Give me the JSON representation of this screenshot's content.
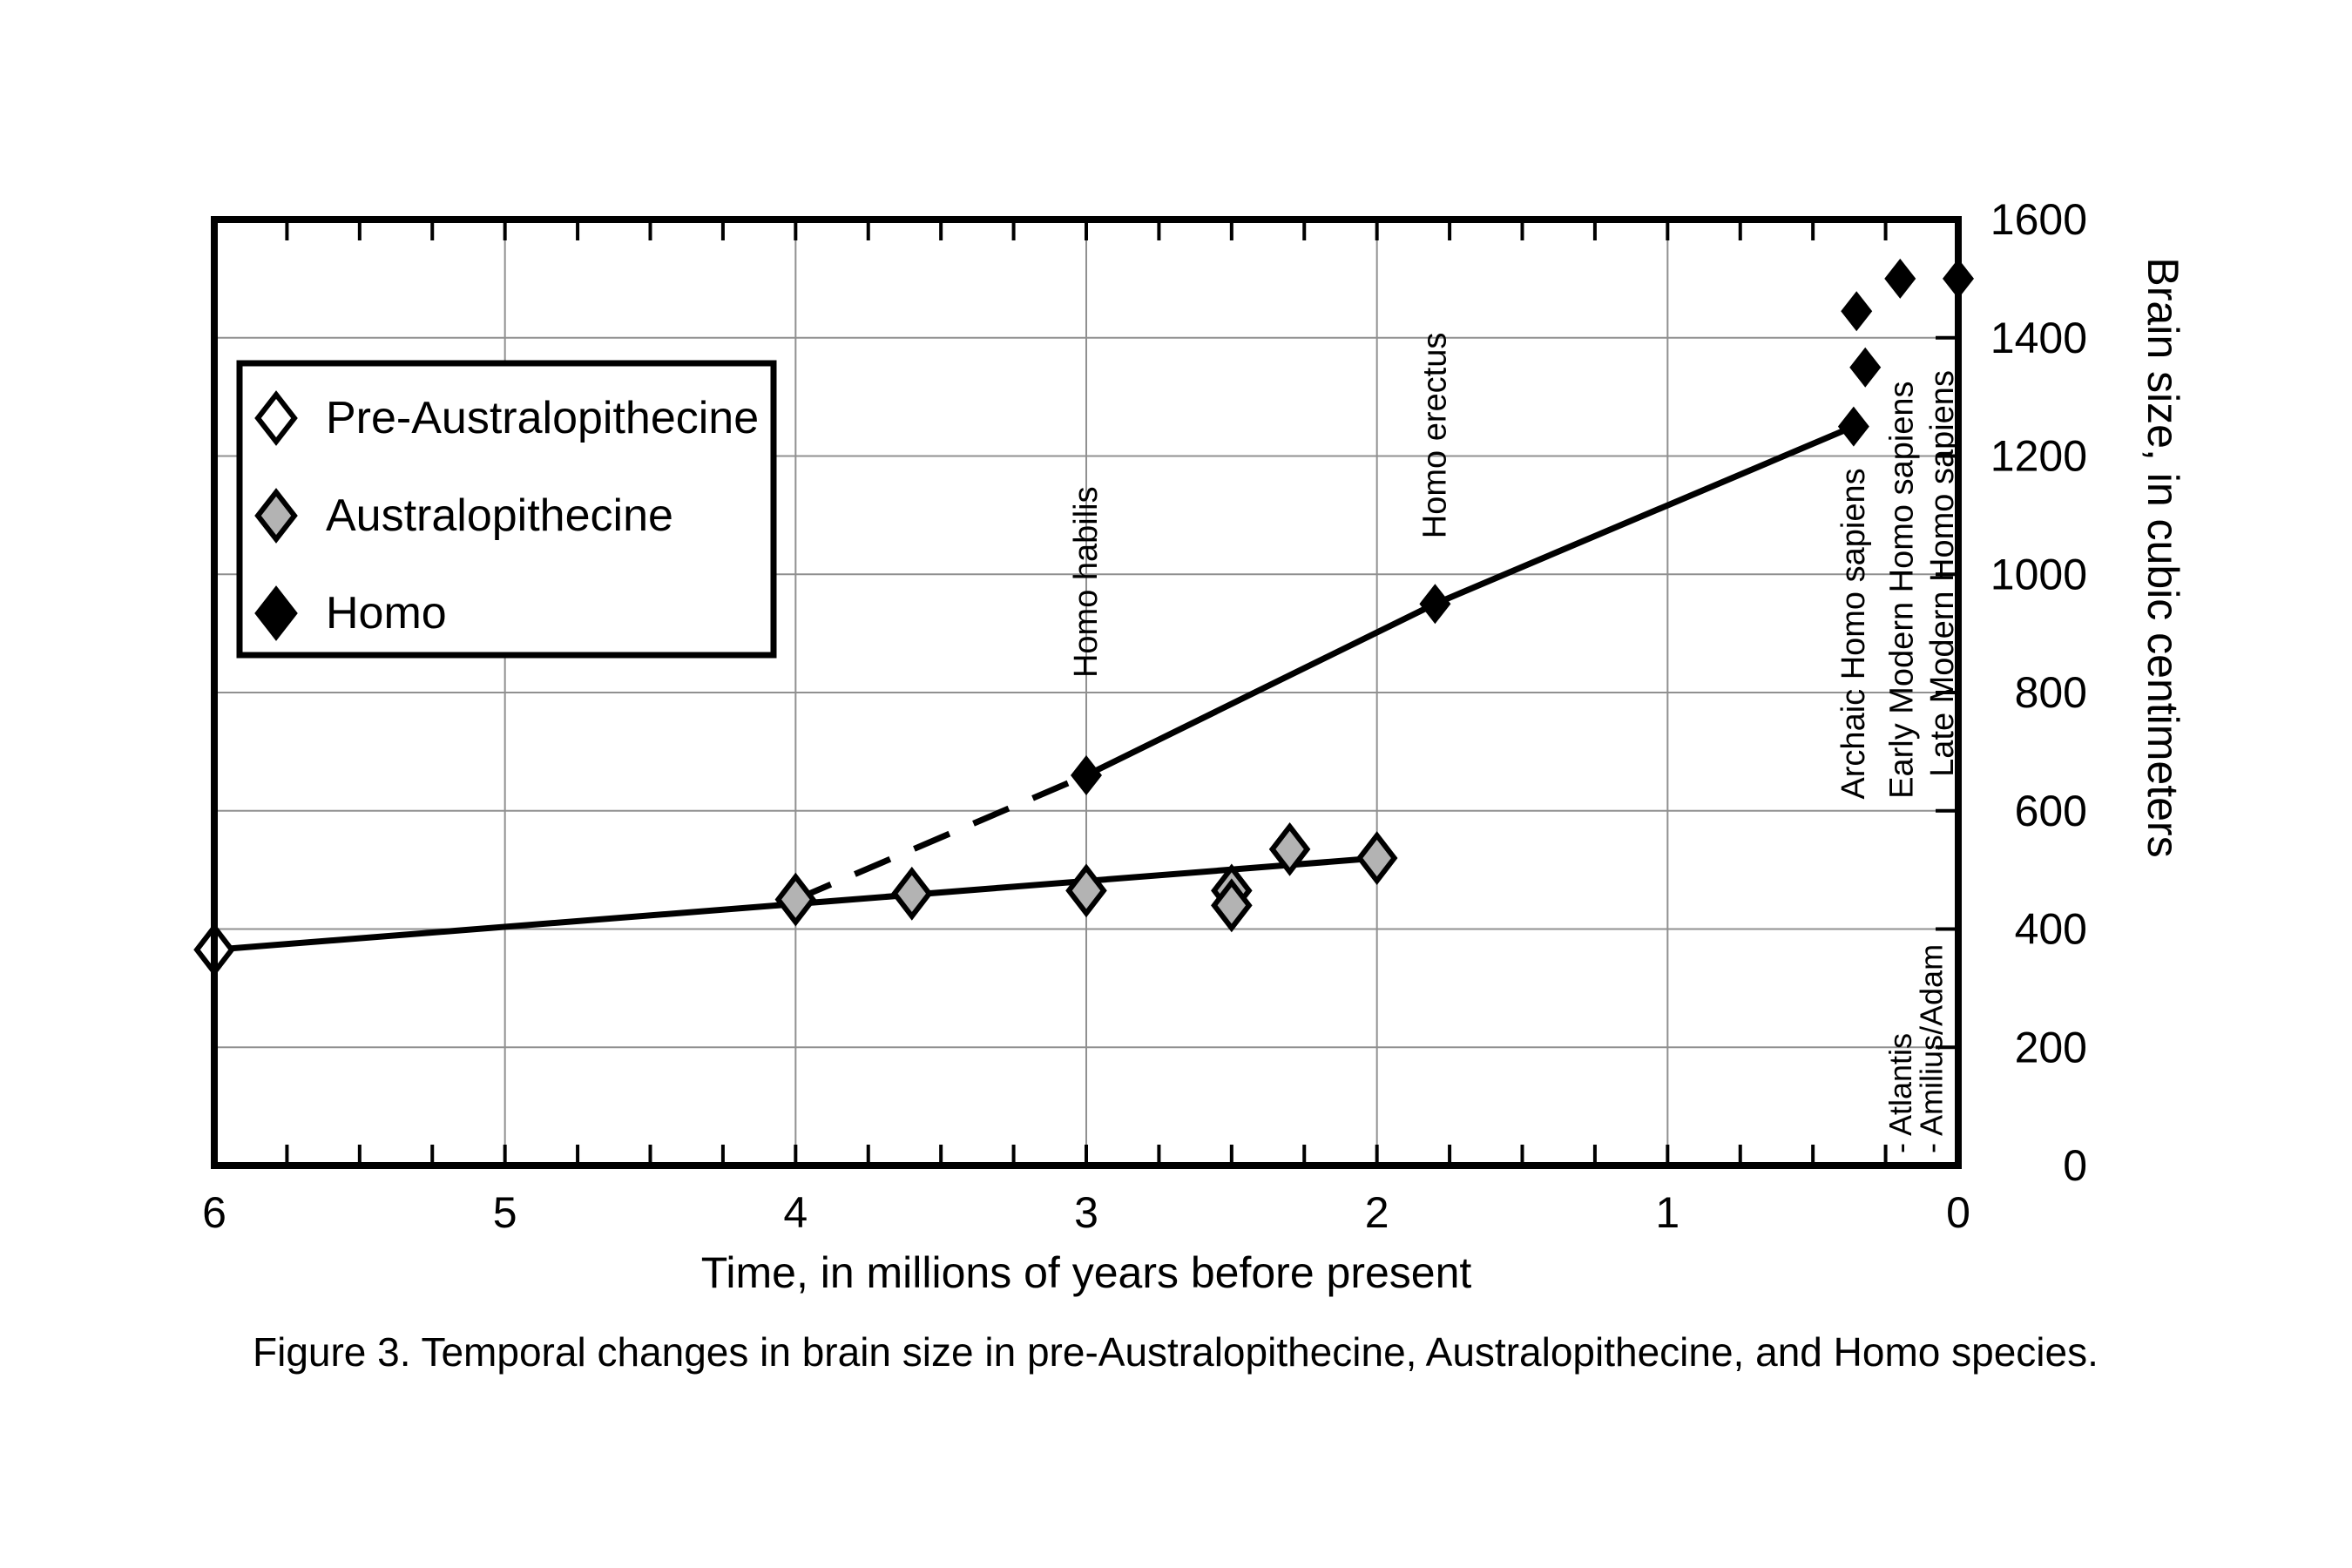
{
  "figure": {
    "caption": "Figure 3. Temporal changes in brain size in pre-Australopithecine, Australopithecine, and Homo species."
  },
  "chart_data": {
    "type": "scatter",
    "xlabel": "Time, in millions of years before present",
    "ylabel": "Brain size, in cubic centimeters",
    "x_axis": {
      "min": 0,
      "max": 6,
      "reversed": true,
      "major_tick_step": 1,
      "minor_tick_step": 0.25,
      "tick_labels": [
        "6",
        "5",
        "4",
        "3",
        "2",
        "1",
        "0"
      ]
    },
    "y_axis": {
      "min": 0,
      "max": 1600,
      "major_tick_step": 200,
      "labels_side": "right",
      "tick_labels": [
        "0",
        "200",
        "400",
        "600",
        "800",
        "1000",
        "1200",
        "1400",
        "1600"
      ]
    },
    "grid": true,
    "colors": {
      "gray_marker": "#b3b3b3",
      "white_marker": "#ffffff",
      "black_marker": "#000000",
      "gridline": "#909090"
    },
    "legend": {
      "position": "upper-left",
      "entries": [
        {
          "label": "Pre-Australopithecine",
          "marker": "diamond-white"
        },
        {
          "label": "Australopithecine",
          "marker": "diamond-gray"
        },
        {
          "label": "Homo",
          "marker": "diamond-black"
        }
      ]
    },
    "series": [
      {
        "name": "Pre-Australopithecine",
        "marker": "diamond-white",
        "points": [
          {
            "x": 6.0,
            "y": 365
          }
        ]
      },
      {
        "name": "Australopithecine",
        "marker": "diamond-gray",
        "points": [
          {
            "x": 4.0,
            "y": 450
          },
          {
            "x": 3.6,
            "y": 460
          },
          {
            "x": 3.0,
            "y": 465
          },
          {
            "x": 2.5,
            "y": 465
          },
          {
            "x": 2.5,
            "y": 440
          },
          {
            "x": 2.3,
            "y": 535
          },
          {
            "x": 2.0,
            "y": 520
          }
        ]
      },
      {
        "name": "Homo",
        "marker": "diamond-black",
        "points": [
          {
            "x": 3.0,
            "y": 660,
            "label": "Homo habilis",
            "label_pos": "above",
            "label_offset": 112
          },
          {
            "x": 1.8,
            "y": 950,
            "label": "Homo erectus",
            "label_pos": "above",
            "label_offset": 75
          },
          {
            "x": 0.36,
            "y": 1250,
            "label": "Archaic Homo sapiens",
            "label_pos": "below",
            "label_offset": 8
          },
          {
            "x": 0.32,
            "y": 1350
          },
          {
            "x": 0.35,
            "y": 1445
          },
          {
            "x": 0.2,
            "y": 1500,
            "label": "Early Modern Homo sapiens",
            "label_pos": "below",
            "label_offset": 72,
            "label_dx": 2
          },
          {
            "x": 0.0,
            "y": 1500,
            "label": "Late Modern Homo sapiens",
            "label_pos": "below",
            "label_offset": 68,
            "label_dx": -18
          }
        ]
      }
    ],
    "lines": [
      {
        "name": "australopithecine-trend",
        "style": "solid",
        "path": [
          [
            6.0,
            365
          ],
          [
            2.0,
            520
          ]
        ]
      },
      {
        "name": "habilis-dashed-link",
        "style": "dashed",
        "path": [
          [
            4.0,
            450
          ],
          [
            3.0,
            660
          ]
        ]
      },
      {
        "name": "homo-trend",
        "style": "solid",
        "path": [
          [
            3.0,
            660
          ],
          [
            1.8,
            950
          ],
          [
            0.36,
            1250
          ]
        ]
      }
    ],
    "annotations": [
      {
        "name": "annotation-atlantis",
        "text": "- Atlantis",
        "x": 0.2,
        "bottom_y": 0
      },
      {
        "name": "annotation-amilius-adam",
        "text": "- Amilius/Adam",
        "x": 0.093,
        "bottom_y": 0
      }
    ]
  }
}
